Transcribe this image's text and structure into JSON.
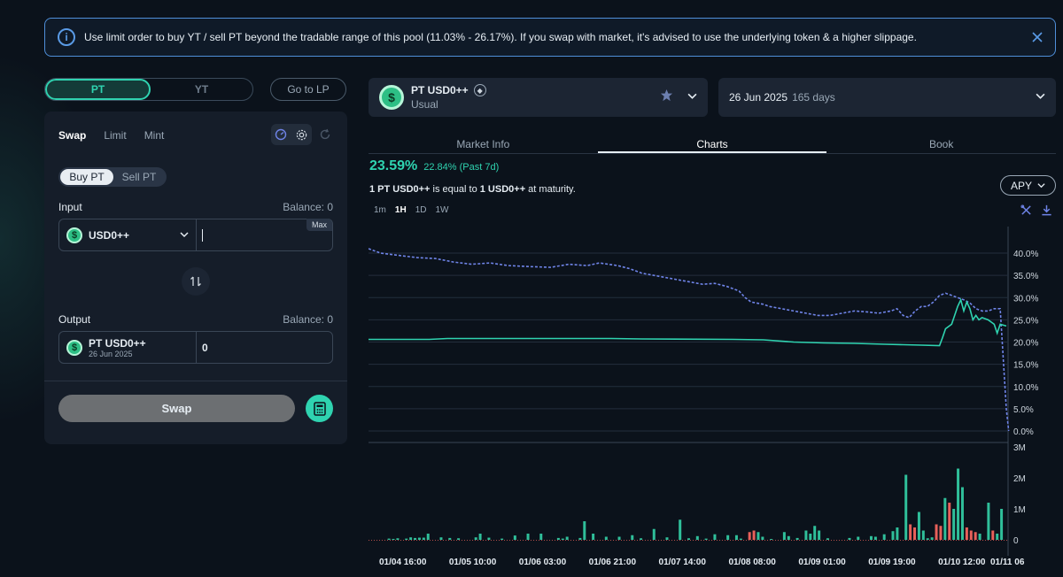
{
  "banner": {
    "message": "Use limit order to buy YT / sell PT beyond the tradable range of this pool (11.03% - 26.17%). If you swap with market, it's advised to use the underlying token & a higher slippage.",
    "info_icon": "info-icon",
    "close_icon": "close-icon"
  },
  "nav": {
    "pt": "PT",
    "yt": "YT",
    "go_lp": "Go to LP"
  },
  "swap_panel": {
    "tabs": [
      "Swap",
      "Limit",
      "Mint"
    ],
    "buy": "Buy PT",
    "sell": "Sell PT",
    "input_label": "Input",
    "input_balance": "Balance: 0",
    "input_token": "USD0++",
    "input_value": "",
    "max": "Max",
    "output_label": "Output",
    "output_balance": "Balance: 0",
    "output_token": "PT USD0++",
    "output_token_date": "26 Jun 2025",
    "output_value": "0",
    "swap_button": "Swap"
  },
  "market": {
    "name": "PT USD0++",
    "sub": "Usual",
    "network_icon": "ethereum-icon",
    "maturity": "26 Jun 2025",
    "days": "165 days"
  },
  "right_tabs": [
    "Market Info",
    "Charts",
    "Book"
  ],
  "stats": {
    "apy": "23.59%",
    "change": "22.84% (Past 7d)",
    "equal_prefix": "1 PT USD0++",
    "equal_mid": " is equal to ",
    "equal_value": "1 USD0++",
    "equal_suffix": " at maturity.",
    "apy_button": "APY"
  },
  "ranges": [
    "1m",
    "1H",
    "1D",
    "1W"
  ],
  "chart_data": {
    "type": "line",
    "x_ticks": [
      "01/04 16:00",
      "01/05 10:00",
      "01/06 03:00",
      "01/06 21:00",
      "01/07 14:00",
      "01/08 08:00",
      "01/09 01:00",
      "01/09 19:00",
      "01/10 12:00",
      "01/11 06"
    ],
    "y_ticks": [
      "40.0%",
      "35.0%",
      "30.0%",
      "25.0%",
      "20.0%",
      "15.0%",
      "10.0%",
      "5.0%",
      "0.0%"
    ],
    "ylim": [
      0,
      42
    ],
    "series": [
      {
        "style": "dashed",
        "color": "#6f84e8",
        "points": [
          [
            0,
            41
          ],
          [
            2,
            40
          ],
          [
            5,
            39.5
          ],
          [
            8,
            39
          ],
          [
            11,
            38.8
          ],
          [
            14,
            38
          ],
          [
            17,
            37.5
          ],
          [
            20,
            37.8
          ],
          [
            23,
            37.2
          ],
          [
            26,
            37
          ],
          [
            30,
            36.8
          ],
          [
            33,
            37.5
          ],
          [
            36,
            37.2
          ],
          [
            38,
            37.8
          ],
          [
            41,
            37.2
          ],
          [
            43,
            36.5
          ],
          [
            45,
            35.5
          ],
          [
            47,
            35
          ],
          [
            49,
            34.5
          ],
          [
            51,
            34
          ],
          [
            53,
            33.5
          ],
          [
            55,
            33
          ],
          [
            57,
            33.2
          ],
          [
            59,
            32.5
          ],
          [
            61,
            31.5
          ],
          [
            62,
            30
          ],
          [
            63,
            29
          ],
          [
            65,
            28.5
          ],
          [
            66,
            28
          ],
          [
            68,
            27.5
          ],
          [
            70,
            27
          ],
          [
            72,
            26.5
          ],
          [
            74,
            26
          ],
          [
            76,
            26
          ],
          [
            78,
            26.5
          ],
          [
            80,
            27
          ],
          [
            82,
            26.8
          ],
          [
            84,
            26.5
          ],
          [
            86,
            27
          ],
          [
            87,
            27.5
          ],
          [
            88,
            26
          ],
          [
            89,
            25.5
          ],
          [
            90,
            27
          ],
          [
            91,
            28
          ],
          [
            92,
            28
          ],
          [
            93,
            29
          ],
          [
            94,
            30.5
          ],
          [
            95,
            31
          ],
          [
            96,
            30.5
          ],
          [
            97,
            30
          ],
          [
            98,
            29.5
          ],
          [
            99,
            28.8
          ],
          [
            100,
            27.5
          ],
          [
            101,
            27
          ],
          [
            102,
            27
          ],
          [
            103,
            27.5
          ],
          [
            104,
            27.5
          ],
          [
            105,
            5
          ],
          [
            105.4,
            0
          ]
        ]
      },
      {
        "style": "solid",
        "color": "#2fd3b0",
        "points": [
          [
            0,
            20.6
          ],
          [
            10,
            20.6
          ],
          [
            13,
            20.8
          ],
          [
            30,
            20.8
          ],
          [
            40,
            20.8
          ],
          [
            45,
            20.7
          ],
          [
            60,
            20.6
          ],
          [
            65,
            20.5
          ],
          [
            70,
            20
          ],
          [
            75,
            19.8
          ],
          [
            80,
            19.7
          ],
          [
            85,
            19.5
          ],
          [
            88,
            19.4
          ],
          [
            91,
            19.3
          ],
          [
            94,
            19.2
          ],
          [
            94.5,
            21
          ],
          [
            95,
            23
          ],
          [
            96,
            24
          ],
          [
            96.5,
            26
          ],
          [
            97,
            28
          ],
          [
            97.5,
            29.5
          ],
          [
            98,
            27
          ],
          [
            98.5,
            29
          ],
          [
            99,
            27.5
          ],
          [
            99.5,
            25
          ],
          [
            100,
            26
          ],
          [
            100.5,
            25
          ],
          [
            101,
            25.5
          ],
          [
            102,
            25
          ],
          [
            103,
            24
          ],
          [
            103.5,
            22
          ],
          [
            104,
            24
          ],
          [
            105,
            23.6
          ]
        ]
      }
    ],
    "volume": {
      "ylim": [
        0,
        3
      ],
      "y_ticks": [
        "3M",
        "2M",
        "1M",
        "0"
      ],
      "bars": [
        [
          4,
          0.04,
          "g"
        ],
        [
          5,
          0.03,
          "g"
        ],
        [
          6,
          0.05,
          "g"
        ],
        [
          8,
          0.04,
          "g"
        ],
        [
          9,
          0.08,
          "g"
        ],
        [
          10,
          0.06,
          "g"
        ],
        [
          11,
          0.07,
          "g"
        ],
        [
          12,
          0.07,
          "g"
        ],
        [
          13,
          0.2,
          "g"
        ],
        [
          16,
          0.08,
          "g"
        ],
        [
          18,
          0.06,
          "g"
        ],
        [
          20,
          0.05,
          "g"
        ],
        [
          24,
          0.08,
          "g"
        ],
        [
          25,
          0.2,
          "g"
        ],
        [
          27,
          0.07,
          "g"
        ],
        [
          30,
          0.04,
          "g"
        ],
        [
          33,
          0.14,
          "g"
        ],
        [
          36,
          0.2,
          "g"
        ],
        [
          39,
          0.2,
          "g"
        ],
        [
          43,
          0.06,
          "g"
        ],
        [
          44,
          0.04,
          "g"
        ],
        [
          45,
          0.1,
          "g"
        ],
        [
          48,
          0.06,
          "g"
        ],
        [
          49,
          0.6,
          "g"
        ],
        [
          51,
          0.2,
          "g"
        ],
        [
          54,
          0.1,
          "g"
        ],
        [
          57,
          0.1,
          "g"
        ],
        [
          60,
          0.15,
          "g"
        ],
        [
          62,
          0.05,
          "g"
        ],
        [
          65,
          0.35,
          "g"
        ],
        [
          68,
          0.08,
          "g"
        ],
        [
          71,
          0.65,
          "g"
        ],
        [
          73,
          0.05,
          "g"
        ],
        [
          75,
          0.12,
          "g"
        ],
        [
          77,
          0.04,
          "g"
        ],
        [
          79,
          0.18,
          "g"
        ],
        [
          82,
          0.15,
          "g"
        ],
        [
          84,
          0.15,
          "g"
        ],
        [
          85,
          0.04,
          "g"
        ],
        [
          87,
          0.25,
          "r"
        ],
        [
          88,
          0.3,
          "r"
        ],
        [
          89,
          0.25,
          "g"
        ],
        [
          90,
          0.1,
          "g"
        ],
        [
          92,
          0.02,
          "g"
        ],
        [
          95,
          0.25,
          "g"
        ],
        [
          96,
          0.12,
          "g"
        ],
        [
          98,
          0.06,
          "g"
        ],
        [
          100,
          0.3,
          "g"
        ],
        [
          101,
          0.2,
          "g"
        ],
        [
          102,
          0.45,
          "g"
        ],
        [
          103,
          0.3,
          "g"
        ],
        [
          105,
          0.05,
          "g"
        ],
        [
          110,
          0.06,
          "g"
        ],
        [
          112,
          0.1,
          "g"
        ],
        [
          115,
          0.12,
          "g"
        ],
        [
          116,
          0.1,
          "g"
        ],
        [
          118,
          0.18,
          "g"
        ],
        [
          120,
          0.28,
          "g"
        ],
        [
          121,
          0.4,
          "g"
        ],
        [
          123,
          2.1,
          "g"
        ],
        [
          124,
          0.5,
          "r"
        ],
        [
          125,
          0.4,
          "r"
        ],
        [
          126,
          0.9,
          "g"
        ],
        [
          127,
          0.3,
          "g"
        ],
        [
          128,
          0.05,
          "g"
        ],
        [
          129,
          0.08,
          "g"
        ],
        [
          130,
          0.5,
          "r"
        ],
        [
          131,
          0.45,
          "r"
        ],
        [
          132,
          1.35,
          "g"
        ],
        [
          133,
          1.2,
          "r"
        ],
        [
          134,
          1.0,
          "g"
        ],
        [
          135,
          2.3,
          "g"
        ],
        [
          136,
          1.7,
          "g"
        ],
        [
          137,
          0.4,
          "r"
        ],
        [
          138,
          0.3,
          "r"
        ],
        [
          139,
          0.25,
          "r"
        ],
        [
          140,
          0.2,
          "g"
        ],
        [
          142,
          1.2,
          "g"
        ],
        [
          143,
          0.3,
          "r"
        ],
        [
          144,
          0.2,
          "g"
        ],
        [
          145,
          1.0,
          "g"
        ]
      ]
    }
  },
  "colors": {
    "accent": "#2fd3b0",
    "banner_border": "#4f8fd9",
    "dashed_series": "#6f84e8",
    "volume_up": "#2fbf9a",
    "volume_down": "#e8605a"
  }
}
